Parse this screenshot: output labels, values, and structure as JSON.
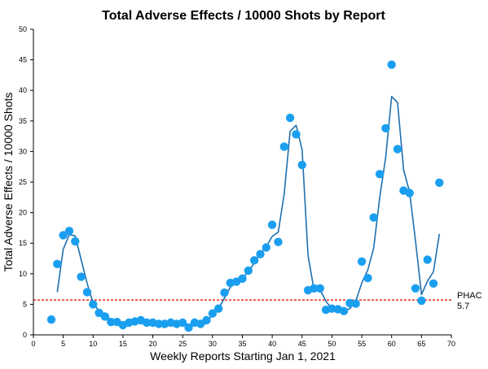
{
  "chart_data": {
    "type": "scatter",
    "title": "Total Adverse Effects / 10000 Shots by Report",
    "xlabel": "Weekly Reports Starting Jan 1, 2021",
    "ylabel": "Total Adverse Effects / 10000 Shots",
    "xlim": [
      0,
      70
    ],
    "ylim": [
      0,
      50
    ],
    "xticks": [
      0,
      5,
      10,
      15,
      20,
      25,
      30,
      35,
      40,
      45,
      50,
      55,
      60,
      65,
      70
    ],
    "yticks": [
      0,
      5,
      10,
      15,
      20,
      25,
      30,
      35,
      40,
      45,
      50
    ],
    "grid": false,
    "series": [
      {
        "kind": "points",
        "color": "#1a9ff0",
        "x": [
          3,
          4,
          5,
          6,
          7,
          8,
          9,
          10,
          11,
          12,
          13,
          14,
          15,
          16,
          17,
          18,
          19,
          20,
          21,
          22,
          23,
          24,
          25,
          26,
          27,
          28,
          29,
          30,
          31,
          32,
          33,
          34,
          35,
          36,
          37,
          38,
          39,
          40,
          41,
          42,
          43,
          44,
          45,
          46,
          47,
          48,
          49,
          50,
          51,
          52,
          53,
          54,
          55,
          56,
          57,
          58,
          59,
          60,
          61,
          62,
          63,
          64,
          65,
          66,
          67,
          68
        ],
        "y": [
          2.5,
          11.6,
          16.3,
          17.0,
          15.3,
          9.5,
          7.0,
          5.0,
          3.6,
          3.0,
          2.1,
          2.1,
          1.6,
          2.0,
          2.2,
          2.4,
          2.0,
          2.0,
          1.8,
          1.8,
          2.0,
          1.8,
          2.0,
          1.2,
          2.0,
          1.8,
          2.4,
          3.5,
          4.3,
          6.9,
          8.5,
          8.7,
          9.2,
          10.5,
          12.2,
          13.2,
          14.3,
          18.0,
          15.2,
          30.8,
          35.5,
          32.8,
          27.8,
          7.3,
          7.6,
          7.6,
          4.1,
          4.3,
          4.2,
          3.9,
          5.2,
          5.1,
          12.0,
          9.3,
          19.2,
          26.3,
          33.8,
          44.2,
          30.4,
          23.6,
          23.2,
          7.6,
          5.6,
          12.3,
          8.4,
          24.9
        ]
      },
      {
        "kind": "line",
        "color": "#1f6fae",
        "x": [
          4,
          5,
          6,
          7,
          8,
          9,
          10,
          11,
          12,
          13,
          14,
          15,
          16,
          17,
          18,
          19,
          20,
          21,
          22,
          23,
          24,
          25,
          26,
          27,
          28,
          29,
          30,
          31,
          32,
          33,
          34,
          35,
          36,
          37,
          38,
          39,
          40,
          41,
          42,
          43,
          44,
          45,
          46,
          47,
          48,
          49,
          50,
          51,
          52,
          53,
          54,
          55,
          56,
          57,
          58,
          59,
          60,
          61,
          62,
          63,
          64,
          65,
          66,
          67,
          68
        ],
        "y": [
          7.0,
          14.0,
          16.4,
          16.2,
          12.3,
          8.4,
          5.2,
          3.9,
          3.1,
          2.5,
          2.1,
          1.8,
          1.9,
          2.1,
          2.2,
          2.1,
          2.0,
          1.9,
          1.9,
          1.9,
          1.9,
          1.8,
          1.6,
          1.8,
          2.0,
          2.4,
          3.1,
          4.3,
          6.0,
          7.8,
          8.7,
          9.3,
          10.3,
          11.8,
          13.3,
          14.4,
          16.1,
          16.8,
          23.0,
          33.3,
          34.3,
          30.3,
          13.0,
          7.4,
          7.4,
          5.5,
          4.2,
          4.1,
          3.9,
          4.3,
          5.5,
          8.5,
          10.6,
          14.2,
          22.5,
          29.0,
          39.0,
          38.0,
          27.0,
          23.4,
          15.4,
          6.6,
          8.8,
          10.3,
          16.5
        ]
      }
    ],
    "reference_line": {
      "y": 5.7,
      "color": "#e8271f",
      "label": "PHAC 5.7"
    }
  }
}
